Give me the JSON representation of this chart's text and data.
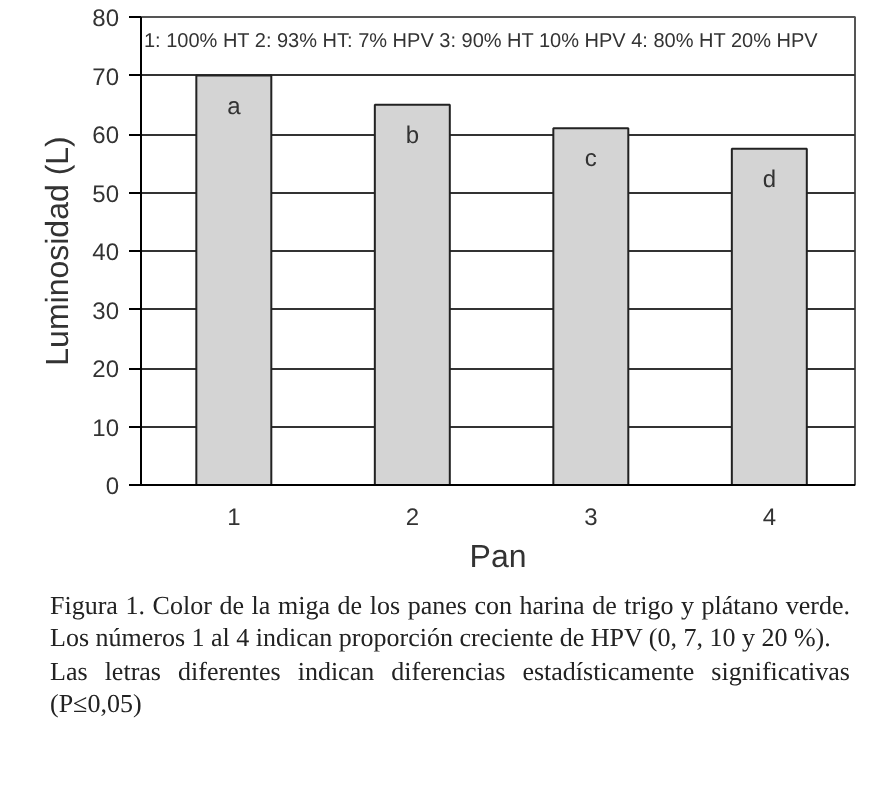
{
  "chart_data": {
    "type": "bar",
    "xlabel": "Pan",
    "ylabel": "Luminosidad (L)",
    "categories": [
      "1",
      "2",
      "3",
      "4"
    ],
    "values": [
      70,
      65,
      61,
      57.5
    ],
    "color": "#d4d4d4",
    "ylim": [
      0,
      80
    ],
    "yticks": [
      0,
      10,
      20,
      30,
      40,
      50,
      60,
      70,
      80
    ],
    "grid": "y",
    "annotations": [
      "1: 100% HT   2: 93% HT: 7% HPV   3: 90% HT 10% HPV   4: 80% HT 20% HPV",
      {
        "text": "a",
        "x": "1",
        "y": 70
      },
      {
        "text": "b",
        "x": "2",
        "y": 65
      },
      {
        "text": "c",
        "x": "3",
        "y": 61
      },
      {
        "text": "d",
        "x": "4",
        "y": 57.5
      },
      "Figura 1. Color de la miga de los panes con harina de trigo y plátano verde. Los números 1 al 4 indican proporción creciente de HPV (0, 7, 10 y 20 %).",
      "Las letras diferentes indican diferencias estadísticamente significativas (P≤0,05)"
    ]
  }
}
